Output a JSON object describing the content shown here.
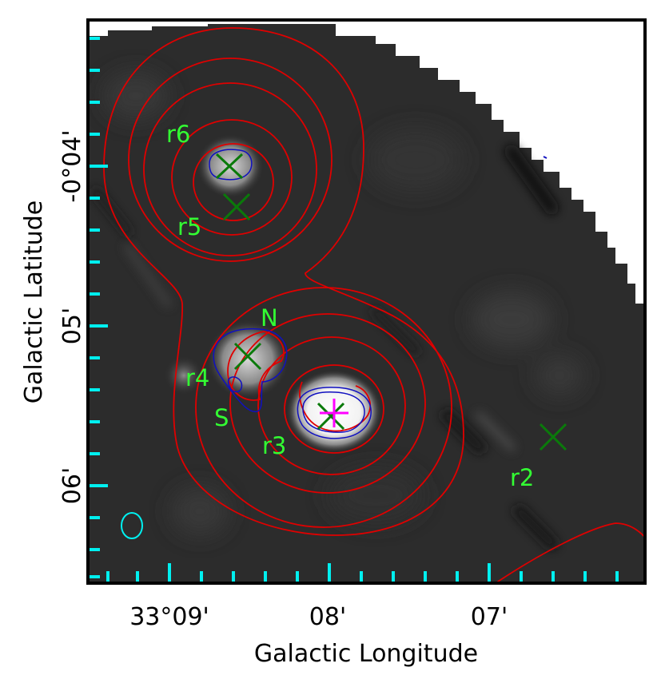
{
  "axes": {
    "xlabel": "Galactic Longitude",
    "ylabel": "Galactic Latitude",
    "x_ticks": [
      "33°09'",
      "08'",
      "07'"
    ],
    "y_ticks": [
      "-0°04'",
      "05'",
      "06'"
    ]
  },
  "sources": {
    "labels": [
      "r6",
      "r5",
      "N",
      "r4",
      "S",
      "r3",
      "r2"
    ]
  },
  "colors": {
    "background": "#ffffff",
    "image_dark": "#2a2a2a",
    "contour_red": "#e00000",
    "contour_blue": "#1010c0",
    "marker_green": "#0a7a0a",
    "label_green": "#33ff33",
    "ticks_cyan": "#00f0f0",
    "peak_magenta": "#ff00ff",
    "frame": "#000000"
  },
  "icons": {
    "source_marker": "x-cross-marker-icon",
    "peak_marker": "plus-star-marker-icon",
    "beam": "ellipse-beam-icon"
  }
}
